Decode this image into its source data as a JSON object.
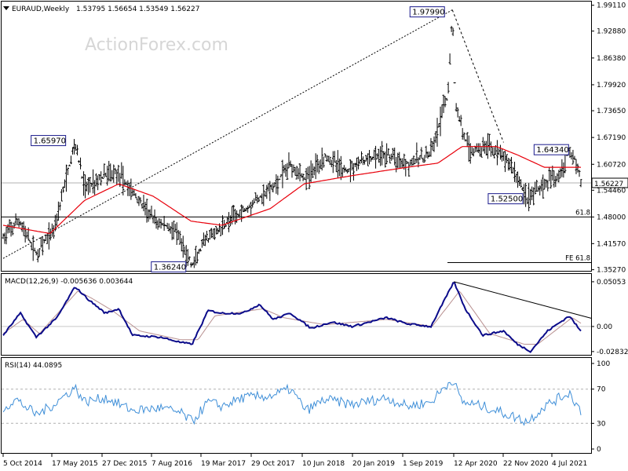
{
  "header": {
    "symbol": "EURAUD,Weekly",
    "ohlc": "1.53795 1.56654 1.53549 1.56227",
    "watermark": "ActionForex.com"
  },
  "colors": {
    "candles": "#000000",
    "ma": "#e8000b",
    "macd": "#0b0b8a",
    "signal": "#b89090",
    "rsi": "#3f8fd8",
    "levels": "#000000",
    "trend": "#000000"
  },
  "chart_data": [
    {
      "type": "line",
      "panel": "price",
      "title": "EURAUD,Weekly",
      "y_ticks": [
        "1.99110",
        "1.92880",
        "1.86380",
        "1.79920",
        "1.73650",
        "1.67190",
        "1.60720",
        "1.54460",
        "1.48000",
        "1.41570",
        "1.35270"
      ],
      "ylim": [
        1.35,
        2.0
      ],
      "x_ticks": [
        "5 Oct 2014",
        "17 May 2015",
        "27 Dec 2015",
        "7 Aug 2016",
        "19 Mar 2017",
        "29 Oct 2017",
        "10 Jun 2018",
        "20 Jan 2019",
        "1 Sep 2019",
        "12 Apr 2020",
        "22 Nov 2020",
        "4 Jul 2021"
      ],
      "current_price": "1.56227",
      "anchors": [
        [
          "2014-10-05",
          1.43
        ],
        [
          "2014-12-15",
          1.47
        ],
        [
          "2015-03-01",
          1.39
        ],
        [
          "2015-05-17",
          1.45
        ],
        [
          "2015-08-20",
          1.6597
        ],
        [
          "2015-10-01",
          1.55
        ],
        [
          "2015-12-27",
          1.58
        ],
        [
          "2016-02-20",
          1.59
        ],
        [
          "2016-05-15",
          1.53
        ],
        [
          "2016-08-07",
          1.47
        ],
        [
          "2016-11-01",
          1.45
        ],
        [
          "2017-01-20",
          1.3624
        ],
        [
          "2017-03-19",
          1.42
        ],
        [
          "2017-07-01",
          1.47
        ],
        [
          "2017-10-29",
          1.52
        ],
        [
          "2018-01-15",
          1.55
        ],
        [
          "2018-04-01",
          1.61
        ],
        [
          "2018-06-10",
          1.57
        ],
        [
          "2018-09-01",
          1.63
        ],
        [
          "2018-12-01",
          1.59
        ],
        [
          "2019-01-20",
          1.61
        ],
        [
          "2019-06-01",
          1.63
        ],
        [
          "2019-09-01",
          1.61
        ],
        [
          "2019-12-15",
          1.63
        ],
        [
          "2020-03-01",
          1.78
        ],
        [
          "2020-03-19",
          1.9799
        ],
        [
          "2020-04-01",
          1.75
        ],
        [
          "2020-06-01",
          1.64
        ],
        [
          "2020-09-01",
          1.65
        ],
        [
          "2020-12-01",
          1.61
        ],
        [
          "2021-02-15",
          1.525
        ],
        [
          "2021-05-01",
          1.56
        ],
        [
          "2021-07-04",
          1.58
        ],
        [
          "2021-08-20",
          1.6434
        ],
        [
          "2021-09-15",
          1.62
        ],
        [
          "2021-10-10",
          1.56227
        ]
      ],
      "ma_anchors": [
        [
          "2014-10-05",
          1.46
        ],
        [
          "2015-05-01",
          1.44
        ],
        [
          "2015-10-01",
          1.52
        ],
        [
          "2016-03-01",
          1.56
        ],
        [
          "2016-08-01",
          1.53
        ],
        [
          "2017-01-15",
          1.47
        ],
        [
          "2017-06-01",
          1.46
        ],
        [
          "2018-01-01",
          1.5
        ],
        [
          "2018-06-01",
          1.56
        ],
        [
          "2019-01-01",
          1.58
        ],
        [
          "2019-09-01",
          1.6
        ],
        [
          "2020-01-15",
          1.61
        ],
        [
          "2020-05-01",
          1.65
        ],
        [
          "2020-10-01",
          1.65
        ],
        [
          "2021-01-01",
          1.63
        ],
        [
          "2021-05-01",
          1.6
        ],
        [
          "2021-10-10",
          1.6
        ]
      ],
      "labels": [
        {
          "text": "1.65970",
          "date": "2015-08-20",
          "value": 1.6597
        },
        {
          "text": "1.97990",
          "date": "2020-03-19",
          "value": 1.9799
        },
        {
          "text": "1.36240",
          "date": "2017-01-20",
          "value": 1.3624
        },
        {
          "text": "1.52500",
          "date": "2021-02-15",
          "value": 1.525
        },
        {
          "text": "1.64340",
          "date": "2021-08-20",
          "value": 1.6434
        }
      ],
      "level_lines": [
        {
          "label": "61.8",
          "value": 1.48
        },
        {
          "label": "FE 61.8",
          "value": 1.37
        }
      ],
      "trendlines": [
        {
          "style": "dotted",
          "from": [
            "2014-10-05",
            1.38
          ],
          "to": [
            "2020-03-19",
            1.9799
          ]
        },
        {
          "style": "dashed",
          "from": [
            "2020-03-19",
            1.9799
          ],
          "to": [
            "2020-11-01",
            1.66
          ]
        }
      ]
    },
    {
      "type": "line",
      "panel": "macd",
      "title": "MACD(12,26,9) -0.005636 0.003644",
      "y_ticks": [
        "0.05053",
        "0.00",
        "-0.028323"
      ],
      "ylim": [
        -0.032,
        0.054
      ],
      "anchors": [
        [
          "2014-10-05",
          -0.01
        ],
        [
          "2014-12-20",
          0.015
        ],
        [
          "2015-03-01",
          -0.012
        ],
        [
          "2015-06-01",
          0.01
        ],
        [
          "2015-08-20",
          0.045
        ],
        [
          "2015-10-20",
          0.03
        ],
        [
          "2016-01-01",
          0.015
        ],
        [
          "2016-03-01",
          0.02
        ],
        [
          "2016-05-01",
          -0.01
        ],
        [
          "2016-09-01",
          -0.012
        ],
        [
          "2016-12-01",
          -0.018
        ],
        [
          "2017-01-20",
          -0.02
        ],
        [
          "2017-04-01",
          0.018
        ],
        [
          "2017-06-01",
          0.015
        ],
        [
          "2017-09-01",
          0.015
        ],
        [
          "2017-11-15",
          0.025
        ],
        [
          "2018-01-15",
          0.008
        ],
        [
          "2018-04-01",
          0.015
        ],
        [
          "2018-07-01",
          -0.002
        ],
        [
          "2018-10-01",
          0.005
        ],
        [
          "2019-01-01",
          0.0
        ],
        [
          "2019-06-01",
          0.01
        ],
        [
          "2019-09-01",
          0.003
        ],
        [
          "2019-12-15",
          0.0
        ],
        [
          "2020-03-26",
          0.05053
        ],
        [
          "2020-05-15",
          0.02
        ],
        [
          "2020-08-01",
          -0.01
        ],
        [
          "2020-11-01",
          -0.005
        ],
        [
          "2021-01-01",
          -0.02
        ],
        [
          "2021-03-01",
          -0.028
        ],
        [
          "2021-05-15",
          -0.005
        ],
        [
          "2021-08-20",
          0.012
        ],
        [
          "2021-10-10",
          -0.005636
        ]
      ],
      "signal_anchors": [
        [
          "2014-10-05",
          -0.008
        ],
        [
          "2015-01-01",
          0.008
        ],
        [
          "2015-03-15",
          -0.008
        ],
        [
          "2015-09-01",
          0.04
        ],
        [
          "2015-11-01",
          0.032
        ],
        [
          "2016-02-01",
          0.018
        ],
        [
          "2016-06-01",
          -0.005
        ],
        [
          "2016-12-01",
          -0.015
        ],
        [
          "2017-02-15",
          -0.015
        ],
        [
          "2017-05-01",
          0.012
        ],
        [
          "2017-12-01",
          0.02
        ],
        [
          "2018-03-01",
          0.01
        ],
        [
          "2018-09-01",
          0.002
        ],
        [
          "2019-06-01",
          0.008
        ],
        [
          "2019-12-20",
          0.0
        ],
        [
          "2020-04-20",
          0.04
        ],
        [
          "2020-06-15",
          0.02
        ],
        [
          "2020-09-01",
          -0.008
        ],
        [
          "2021-02-01",
          -0.02
        ],
        [
          "2021-04-01",
          -0.02
        ],
        [
          "2021-09-01",
          0.01
        ],
        [
          "2021-10-10",
          0.003644
        ]
      ],
      "trendline": {
        "from": [
          "2020-03-26",
          0.05053
        ],
        "to": [
          "2021-10-10",
          0.01
        ]
      }
    },
    {
      "type": "line",
      "panel": "rsi",
      "title": "RSI(14) 44.0895",
      "y_ticks": [
        "100",
        "70",
        "30",
        "0"
      ],
      "ylim": [
        0,
        100
      ],
      "anchors": [
        [
          "2014-10-05",
          48
        ],
        [
          "2014-12-01",
          58
        ],
        [
          "2015-03-01",
          40
        ],
        [
          "2015-05-17",
          52
        ],
        [
          "2015-08-20",
          72
        ],
        [
          "2015-10-01",
          55
        ],
        [
          "2016-01-01",
          60
        ],
        [
          "2016-05-01",
          45
        ],
        [
          "2016-09-01",
          48
        ],
        [
          "2016-12-01",
          42
        ],
        [
          "2017-01-20",
          32
        ],
        [
          "2017-04-01",
          55
        ],
        [
          "2017-06-01",
          50
        ],
        [
          "2017-09-01",
          60
        ],
        [
          "2018-01-01",
          62
        ],
        [
          "2018-04-01",
          70
        ],
        [
          "2018-06-10",
          45
        ],
        [
          "2018-09-01",
          58
        ],
        [
          "2019-01-01",
          52
        ],
        [
          "2019-06-01",
          60
        ],
        [
          "2019-09-01",
          50
        ],
        [
          "2019-12-15",
          55
        ],
        [
          "2020-03-19",
          82
        ],
        [
          "2020-05-01",
          55
        ],
        [
          "2020-08-01",
          50
        ],
        [
          "2020-11-01",
          42
        ],
        [
          "2021-02-15",
          32
        ],
        [
          "2021-05-01",
          50
        ],
        [
          "2021-08-20",
          66
        ],
        [
          "2021-10-10",
          44.09
        ]
      ],
      "levels": [
        70,
        30
      ]
    }
  ]
}
